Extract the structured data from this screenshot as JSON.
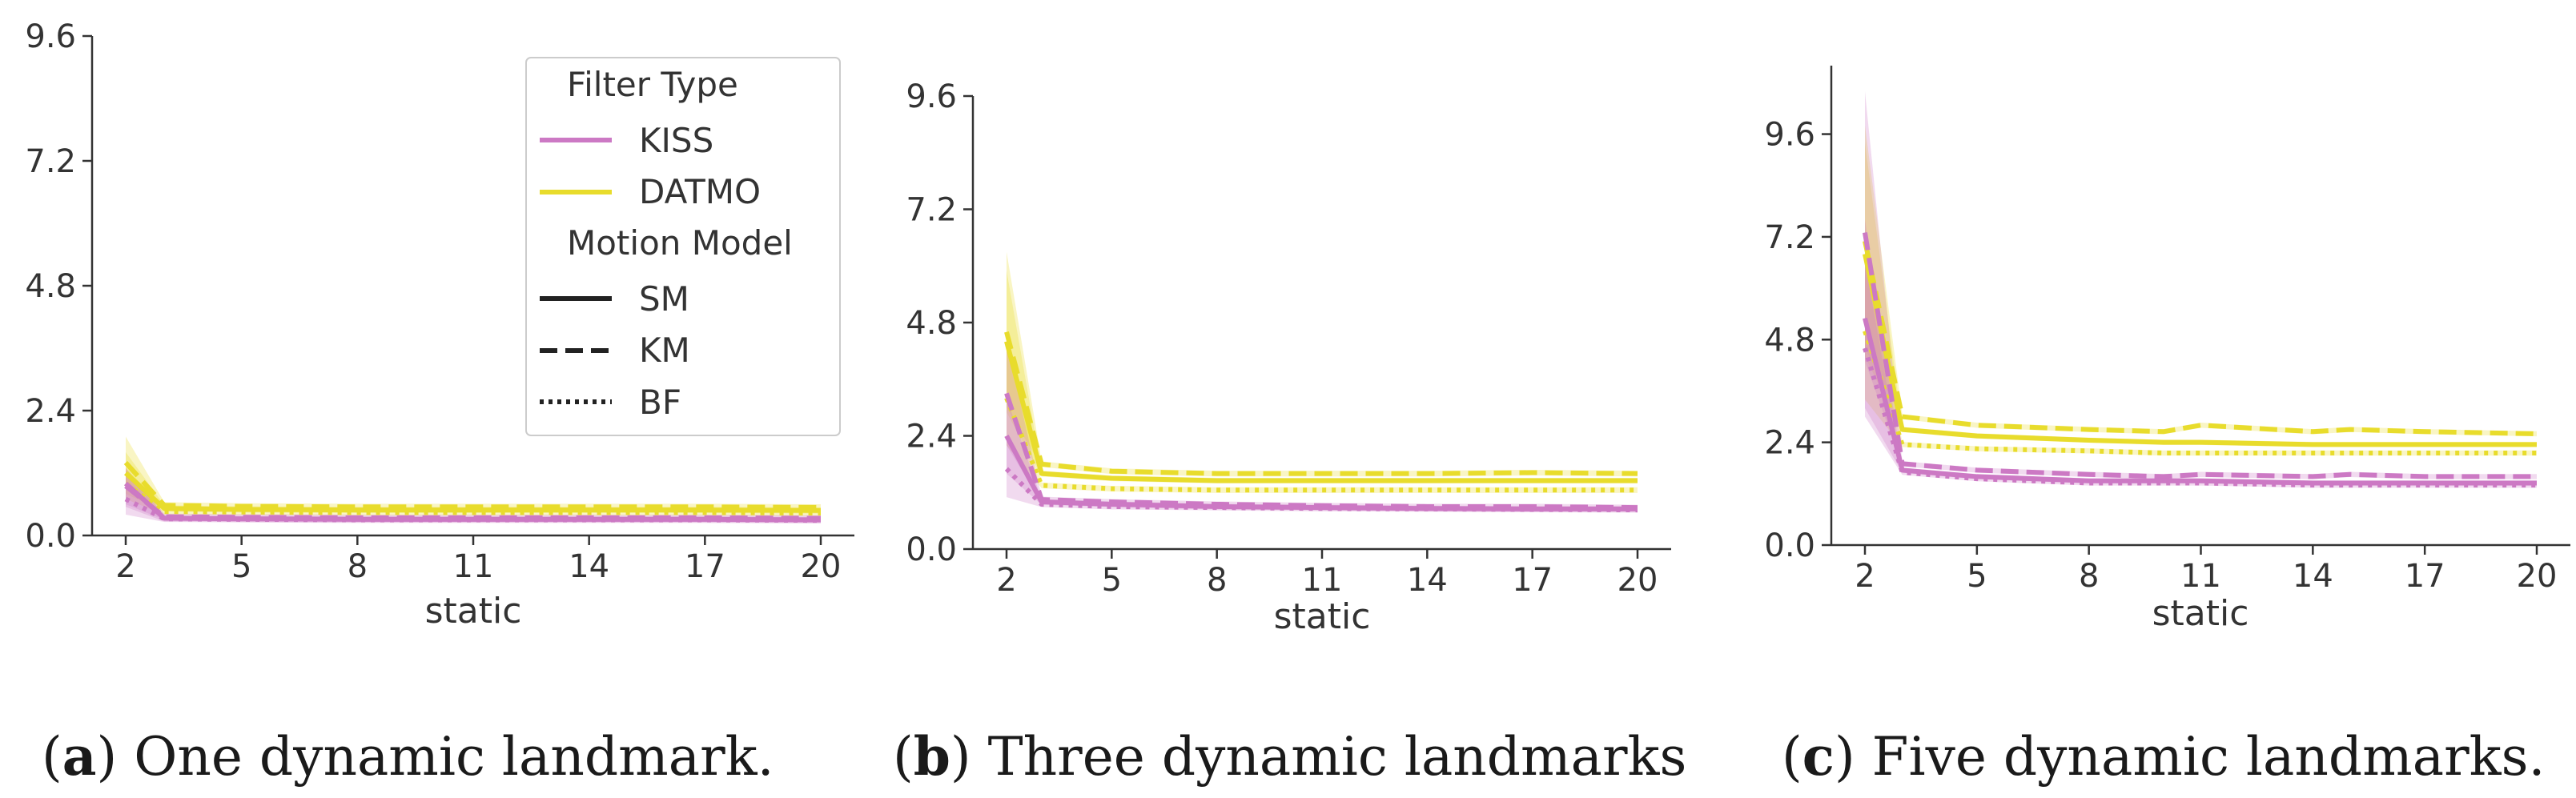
{
  "colors": {
    "KISS": "#CC79C4",
    "DATMO": "#E8DC2C",
    "axis": "#333333",
    "legend_line": "#222222"
  },
  "legend": {
    "filter_title": "Filter Type",
    "filter_items": [
      {
        "label": "KISS",
        "color": "KISS"
      },
      {
        "label": "DATMO",
        "color": "DATMO"
      }
    ],
    "model_title": "Motion Model",
    "model_items": [
      {
        "label": "SM",
        "style": "solid"
      },
      {
        "label": "KM",
        "style": "dashed"
      },
      {
        "label": "BF",
        "style": "dotted"
      }
    ]
  },
  "chart_data": [
    {
      "type": "line",
      "caption_letter": "a",
      "caption_text": "One dynamic landmark.",
      "xlabel": "static",
      "ylabel": "",
      "xlim": [
        2,
        20
      ],
      "ylim": [
        0,
        9.6
      ],
      "xticks": [
        "2",
        "5",
        "8",
        "11",
        "14",
        "17",
        "20"
      ],
      "yticks": [
        "0.0",
        "2.4",
        "4.8",
        "7.2",
        "9.6"
      ],
      "legend_position": "top-right",
      "x": [
        2,
        3,
        5,
        8,
        11,
        14,
        17,
        20
      ],
      "series": [
        {
          "filter": "DATMO",
          "model": "KM",
          "values": [
            1.4,
            0.58,
            0.56,
            0.55,
            0.55,
            0.55,
            0.55,
            0.54
          ],
          "band": [
            0.9,
            1.9
          ]
        },
        {
          "filter": "DATMO",
          "model": "SM",
          "values": [
            1.2,
            0.52,
            0.5,
            0.49,
            0.49,
            0.49,
            0.49,
            0.48
          ],
          "band": [
            0.8,
            1.6
          ]
        },
        {
          "filter": "DATMO",
          "model": "BF",
          "values": [
            1.0,
            0.46,
            0.45,
            0.44,
            0.44,
            0.44,
            0.44,
            0.43
          ],
          "band": [
            0.7,
            1.3
          ]
        },
        {
          "filter": "KISS",
          "model": "KM",
          "values": [
            0.95,
            0.36,
            0.35,
            0.34,
            0.34,
            0.34,
            0.34,
            0.33
          ],
          "band": [
            0.6,
            1.3
          ]
        },
        {
          "filter": "KISS",
          "model": "SM",
          "values": [
            1.0,
            0.33,
            0.32,
            0.31,
            0.31,
            0.31,
            0.31,
            0.3
          ],
          "band": [
            0.55,
            1.25
          ]
        },
        {
          "filter": "KISS",
          "model": "BF",
          "values": [
            0.7,
            0.32,
            0.31,
            0.3,
            0.3,
            0.3,
            0.3,
            0.29
          ],
          "band": [
            0.4,
            1.0
          ]
        }
      ]
    },
    {
      "type": "line",
      "caption_letter": "b",
      "caption_text": "Three dynamic landmarks",
      "xlabel": "static",
      "ylabel": "",
      "xlim": [
        2,
        20
      ],
      "ylim": [
        0,
        9.6
      ],
      "xticks": [
        "2",
        "5",
        "8",
        "11",
        "14",
        "17",
        "20"
      ],
      "yticks": [
        "0.0",
        "2.4",
        "4.8",
        "7.2",
        "9.6"
      ],
      "x": [
        2,
        3,
        5,
        8,
        11,
        14,
        17,
        20
      ],
      "series": [
        {
          "filter": "DATMO",
          "model": "KM",
          "values": [
            4.6,
            1.8,
            1.65,
            1.6,
            1.6,
            1.6,
            1.62,
            1.6
          ],
          "band": [
            3.0,
            6.3
          ]
        },
        {
          "filter": "DATMO",
          "model": "SM",
          "values": [
            4.4,
            1.6,
            1.5,
            1.45,
            1.45,
            1.45,
            1.45,
            1.45
          ],
          "band": [
            2.9,
            5.9
          ]
        },
        {
          "filter": "DATMO",
          "model": "BF",
          "values": [
            3.2,
            1.35,
            1.28,
            1.25,
            1.25,
            1.25,
            1.25,
            1.25
          ],
          "band": [
            2.2,
            4.3
          ]
        },
        {
          "filter": "KISS",
          "model": "KM",
          "values": [
            3.3,
            1.05,
            1.0,
            0.95,
            0.92,
            0.9,
            0.9,
            0.88
          ],
          "band": [
            2.2,
            4.4
          ]
        },
        {
          "filter": "KISS",
          "model": "SM",
          "values": [
            2.4,
            1.0,
            0.95,
            0.9,
            0.88,
            0.86,
            0.85,
            0.85
          ],
          "band": [
            1.6,
            3.2
          ]
        },
        {
          "filter": "KISS",
          "model": "BF",
          "values": [
            1.7,
            0.95,
            0.9,
            0.88,
            0.86,
            0.85,
            0.84,
            0.83
          ],
          "band": [
            1.1,
            2.4
          ]
        }
      ]
    },
    {
      "type": "line",
      "caption_letter": "c",
      "caption_text": "Five dynamic landmarks.",
      "xlabel": "static",
      "ylabel": "",
      "xlim": [
        2,
        20
      ],
      "ylim": [
        0,
        11.2
      ],
      "xticks": [
        "2",
        "5",
        "8",
        "11",
        "14",
        "17",
        "20"
      ],
      "yticks": [
        "0.0",
        "2.4",
        "4.8",
        "7.2",
        "9.6"
      ],
      "x": [
        2,
        3,
        5,
        8,
        10,
        11,
        14,
        15,
        17,
        20
      ],
      "series": [
        {
          "filter": "DATMO",
          "model": "KM",
          "values": [
            7.1,
            3.0,
            2.8,
            2.7,
            2.65,
            2.8,
            2.65,
            2.7,
            2.65,
            2.6
          ],
          "band": [
            4.6,
            9.8
          ]
        },
        {
          "filter": "DATMO",
          "model": "SM",
          "values": [
            6.8,
            2.7,
            2.55,
            2.45,
            2.4,
            2.4,
            2.35,
            2.35,
            2.35,
            2.35
          ],
          "band": [
            4.4,
            9.4
          ]
        },
        {
          "filter": "DATMO",
          "model": "BF",
          "values": [
            5.0,
            2.35,
            2.25,
            2.2,
            2.15,
            2.15,
            2.15,
            2.15,
            2.15,
            2.15
          ],
          "band": [
            3.4,
            7.0
          ]
        },
        {
          "filter": "KISS",
          "model": "KM",
          "values": [
            7.3,
            1.9,
            1.75,
            1.65,
            1.6,
            1.65,
            1.6,
            1.65,
            1.6,
            1.6
          ],
          "band": [
            4.3,
            10.6
          ]
        },
        {
          "filter": "KISS",
          "model": "SM",
          "values": [
            5.3,
            1.75,
            1.6,
            1.5,
            1.5,
            1.5,
            1.45,
            1.45,
            1.45,
            1.45
          ],
          "band": [
            3.2,
            7.6
          ]
        },
        {
          "filter": "KISS",
          "model": "BF",
          "values": [
            4.6,
            1.7,
            1.55,
            1.45,
            1.45,
            1.45,
            1.4,
            1.4,
            1.4,
            1.4
          ],
          "band": [
            3.0,
            6.6
          ]
        }
      ]
    }
  ]
}
